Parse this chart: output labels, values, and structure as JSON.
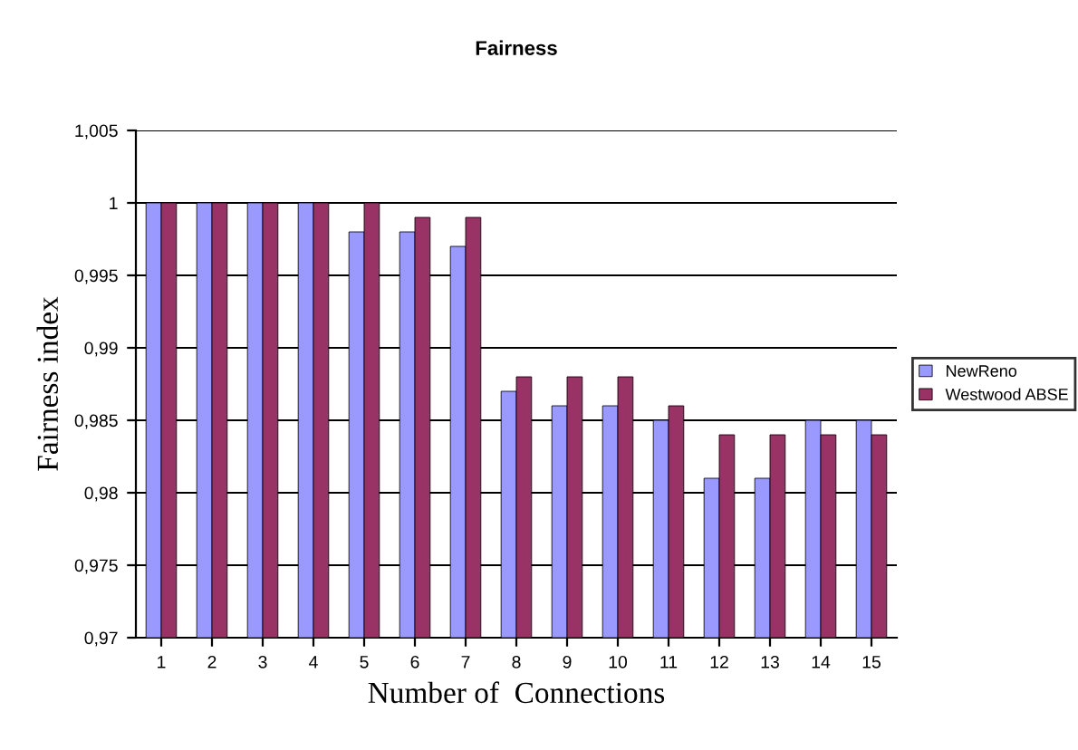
{
  "chart_data": {
    "type": "bar",
    "title": "Fairness",
    "xlabel": "Number of  Connections",
    "ylabel": "Fairness index",
    "categories": [
      "1",
      "2",
      "3",
      "4",
      "5",
      "6",
      "7",
      "8",
      "9",
      "10",
      "11",
      "12",
      "13",
      "14",
      "15"
    ],
    "series": [
      {
        "name": "NewReno",
        "color": "#9999ff",
        "values": [
          1,
          1,
          1,
          1,
          0.998,
          0.998,
          0.997,
          0.987,
          0.986,
          0.986,
          0.985,
          0.981,
          0.981,
          0.985,
          0.985
        ]
      },
      {
        "name": "Westwood ABSE",
        "color": "#993366",
        "values": [
          1,
          1,
          1,
          1,
          1,
          0.999,
          0.999,
          0.988,
          0.988,
          0.988,
          0.986,
          0.984,
          0.984,
          0.984,
          0.984
        ]
      }
    ],
    "ylim": [
      0.97,
      1.005
    ],
    "yticks": [
      {
        "value": 0.97,
        "label": "0,97"
      },
      {
        "value": 0.975,
        "label": "0,975"
      },
      {
        "value": 0.98,
        "label": "0,98"
      },
      {
        "value": 0.985,
        "label": "0,985"
      },
      {
        "value": 0.99,
        "label": "0,99"
      },
      {
        "value": 0.995,
        "label": "0,995"
      },
      {
        "value": 1,
        "label": "1"
      },
      {
        "value": 1.005,
        "label": "1,005"
      }
    ],
    "grid": "y",
    "legend": "right"
  }
}
